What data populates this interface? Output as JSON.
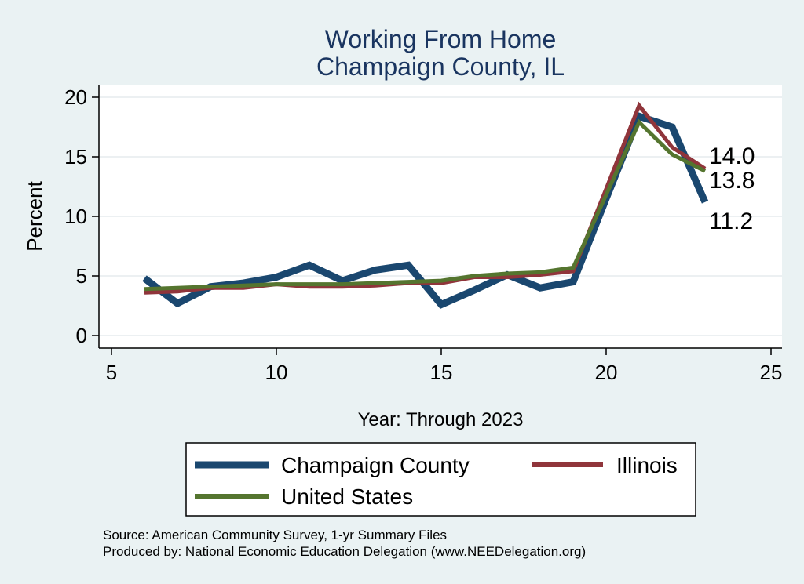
{
  "chart_data": {
    "type": "line",
    "title": "Working From Home",
    "subtitle": "Champaign County, IL",
    "xlabel": "Year: Through 2023",
    "ylabel": "Percent",
    "xlim": [
      5,
      25
    ],
    "ylim": [
      0,
      20
    ],
    "xticks": [
      5,
      10,
      15,
      20,
      25
    ],
    "yticks": [
      0,
      5,
      10,
      15,
      20
    ],
    "grid": true,
    "legend_position": "bottom",
    "series": [
      {
        "name": "Champaign County",
        "color": "#1a476f",
        "x": [
          6,
          7,
          8,
          9,
          10,
          11,
          12,
          13,
          14,
          15,
          16,
          17,
          18,
          19,
          20,
          21,
          22,
          23
        ],
        "values": [
          4.8,
          2.7,
          4.1,
          4.4,
          4.9,
          5.9,
          4.6,
          5.5,
          5.9,
          2.6,
          3.8,
          5.1,
          4.0,
          4.5,
          11.5,
          18.4,
          17.5,
          11.2
        ]
      },
      {
        "name": "Illinois",
        "color": "#90353b",
        "x": [
          6,
          7,
          8,
          9,
          10,
          11,
          12,
          13,
          14,
          15,
          16,
          17,
          18,
          19,
          20,
          21,
          22,
          23
        ],
        "values": [
          3.6,
          3.7,
          4.0,
          4.0,
          4.3,
          4.1,
          4.1,
          4.2,
          4.4,
          4.4,
          4.9,
          4.9,
          5.1,
          5.4,
          12.3,
          19.3,
          15.8,
          14.0
        ]
      },
      {
        "name": "United States",
        "color": "#55752f",
        "x": [
          6,
          7,
          8,
          9,
          10,
          11,
          12,
          13,
          14,
          15,
          16,
          17,
          18,
          19,
          20,
          21,
          22,
          23
        ],
        "values": [
          3.9,
          4.0,
          4.1,
          4.2,
          4.3,
          4.3,
          4.3,
          4.4,
          4.5,
          4.6,
          5.0,
          5.2,
          5.3,
          5.7,
          11.8,
          17.9,
          15.2,
          13.8
        ]
      }
    ],
    "end_labels": [
      {
        "series": "Illinois",
        "text": "14.0"
      },
      {
        "series": "United States",
        "text": "13.8"
      },
      {
        "series": "Champaign County",
        "text": "11.2"
      }
    ]
  },
  "footer": {
    "source": "Source: American Community Survey, 1-yr Summary Files",
    "produced_by": "Produced by: National Economic Education Delegation (www.NEEDelegation.org)"
  }
}
